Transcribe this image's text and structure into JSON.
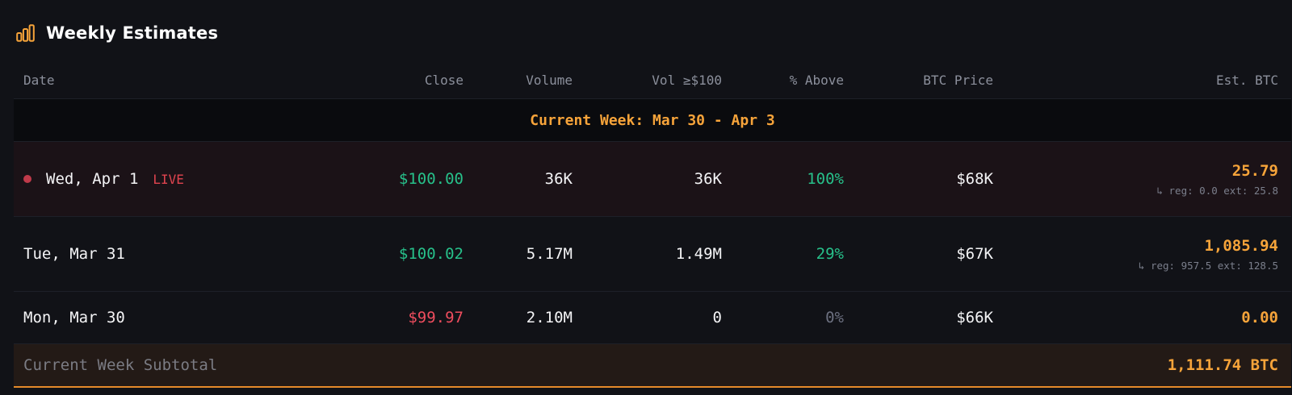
{
  "panel": {
    "title": "Weekly Estimates",
    "accent_color": "#f7a43a",
    "icon": "bar-chart-icon"
  },
  "table": {
    "columns": [
      "Date",
      "Close",
      "Volume",
      "Vol ≥$100",
      "% Above",
      "BTC Price",
      "Est. BTC"
    ],
    "week_banner": "Current Week: Mar 30 - Apr 3",
    "rows": [
      {
        "date": "Wed, Apr 1",
        "live_label": "LIVE",
        "close": "$100.00",
        "volume": "36K",
        "vol_100": "36K",
        "pct_above": "100%",
        "btc_price": "$68K",
        "est_btc": "25.79",
        "est_detail": "↳ reg: 0.0 ext: 25.8"
      },
      {
        "date": "Tue, Mar 31",
        "close": "$100.02",
        "volume": "5.17M",
        "vol_100": "1.49M",
        "pct_above": "29%",
        "btc_price": "$67K",
        "est_btc": "1,085.94",
        "est_detail": "↳ reg: 957.5 ext: 128.5"
      },
      {
        "date": "Mon, Mar 30",
        "close": "$99.97",
        "volume": "2.10M",
        "vol_100": "0",
        "pct_above": "0%",
        "btc_price": "$66K",
        "est_btc": "0.00"
      }
    ],
    "subtotal_label": "Current Week Subtotal",
    "subtotal_value": "1,111.74 BTC"
  }
}
